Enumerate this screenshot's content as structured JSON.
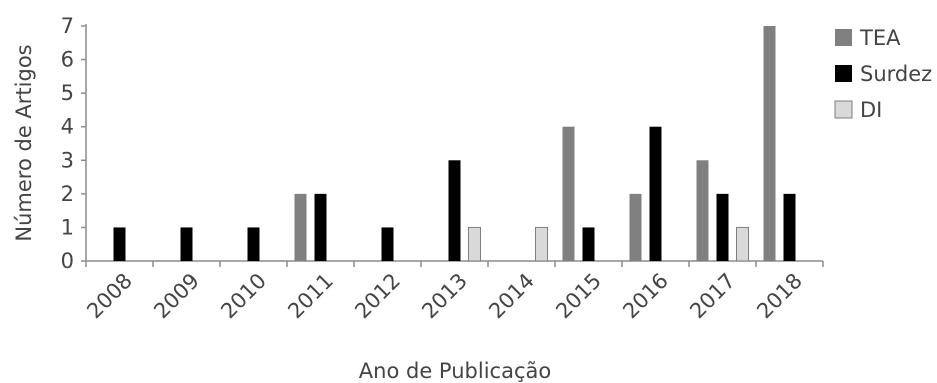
{
  "chart_data": {
    "type": "bar",
    "categories": [
      "2008",
      "2009",
      "2010",
      "2011",
      "2012",
      "2013",
      "2014",
      "2015",
      "2016",
      "2017",
      "2018"
    ],
    "series": [
      {
        "name": "TEA",
        "color": "#808080",
        "values": [
          0,
          0,
          0,
          2,
          0,
          0,
          0,
          4,
          2,
          3,
          7
        ]
      },
      {
        "name": "Surdez",
        "color": "#000000",
        "values": [
          1,
          1,
          1,
          2,
          1,
          3,
          0,
          1,
          4,
          2,
          2
        ]
      },
      {
        "name": "DI",
        "color": "#d9d9d9",
        "values": [
          0,
          0,
          0,
          0,
          0,
          1,
          1,
          0,
          0,
          1,
          0
        ]
      }
    ],
    "xlabel": "Ano de Publicação",
    "ylabel": "Número de Artigos",
    "ylim": [
      0,
      7
    ],
    "yticks": [
      "0",
      "1",
      "2",
      "3",
      "4",
      "5",
      "6",
      "7"
    ],
    "grid": false,
    "legend_position": "right"
  }
}
